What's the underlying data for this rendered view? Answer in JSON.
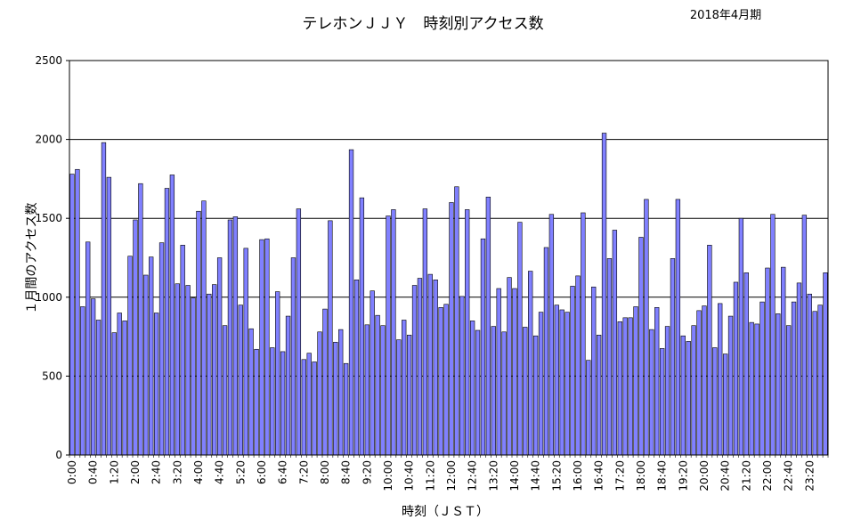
{
  "chart_data": {
    "type": "bar",
    "title": "テレホンＪＪＹ　時刻別アクセス数",
    "subtitle": "2018年4月期",
    "xlabel": "時刻（ＪＳＴ）",
    "ylabel": "１月間のアクセス数",
    "ylim": [
      0,
      2500
    ],
    "yticks": [
      0,
      500,
      1000,
      1500,
      2000,
      2500
    ],
    "grid": true,
    "bar_color": "#8080ff",
    "x_tick_labels": [
      "0:00",
      "0:40",
      "1:20",
      "2:00",
      "2:40",
      "3:20",
      "4:00",
      "4:40",
      "5:20",
      "6:00",
      "6:40",
      "7:20",
      "8:00",
      "8:40",
      "9:20",
      "10:00",
      "10:40",
      "11:20",
      "12:00",
      "12:40",
      "13:20",
      "14:00",
      "14:40",
      "15:20",
      "16:00",
      "16:40",
      "17:20",
      "18:00",
      "18:40",
      "19:20",
      "20:00",
      "20:40",
      "21:20",
      "22:00",
      "22:40",
      "23:20"
    ],
    "x_tick_every": 4,
    "bar_interval_minutes": 10,
    "values": [
      1780,
      1810,
      940,
      1350,
      990,
      855,
      1980,
      1760,
      775,
      900,
      850,
      1260,
      1490,
      1720,
      1140,
      1255,
      900,
      1345,
      1690,
      1775,
      1085,
      1330,
      1075,
      995,
      1545,
      1610,
      1020,
      1080,
      1250,
      820,
      1490,
      1510,
      950,
      1310,
      800,
      670,
      1365,
      1370,
      680,
      1035,
      655,
      880,
      1250,
      1560,
      605,
      645,
      590,
      780,
      925,
      1485,
      715,
      795,
      580,
      1935,
      1110,
      1630,
      825,
      1040,
      885,
      820,
      1515,
      1555,
      730,
      855,
      760,
      1075,
      1120,
      1560,
      1145,
      1110,
      935,
      955,
      1600,
      1700,
      1005,
      1555,
      850,
      790,
      1370,
      1635,
      815,
      1055,
      780,
      1125,
      1055,
      1475,
      810,
      1165,
      755,
      905,
      1315,
      1525,
      950,
      920,
      905,
      1070,
      1135,
      1535,
      600,
      1065,
      760,
      2040,
      1245,
      1425,
      845,
      870,
      870,
      940,
      1380,
      1620,
      795,
      935,
      675,
      815,
      1245,
      1620,
      755,
      720,
      820,
      915,
      945,
      1330,
      680,
      960,
      640,
      880,
      1095,
      1500,
      1155,
      840,
      830,
      970,
      1185,
      1525,
      895,
      1190,
      820,
      970,
      1090,
      1520,
      1020,
      910,
      950,
      1155
    ]
  }
}
